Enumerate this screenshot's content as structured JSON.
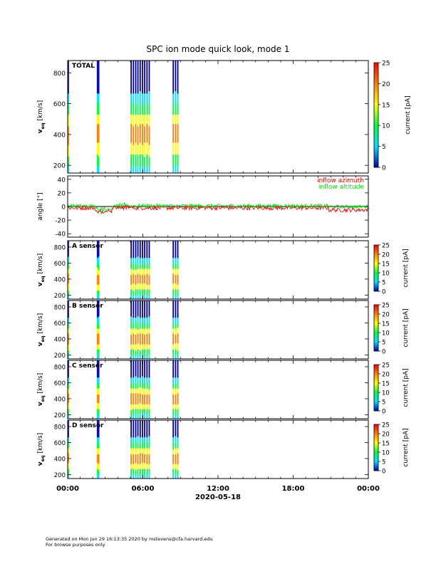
{
  "title": "SPC ion mode quick look, mode 1",
  "date_label": "2020-05-18",
  "footer": {
    "line1": "Generated on Mon Jun 29 16:13:35 2020 by mstevens@cfa.harvard.edu",
    "line2": "For browse purposes only."
  },
  "colors": {
    "axis": "#000000",
    "azimuth": "#ff0000",
    "altitude": "#00dd00",
    "colormap": [
      "#0000aa",
      "#00e0ff",
      "#00ff40",
      "#ffff00",
      "#ff8000",
      "#ff0000"
    ]
  },
  "chart_data": [
    {
      "type": "heatmap",
      "panel": "TOTAL",
      "label": "TOTAL",
      "ylabel_main": "v",
      "ylabel_sub": "eq",
      "ylabel_unit": " [km/s]",
      "ylim": [
        150,
        880
      ],
      "yticks": [
        200,
        400,
        600,
        800
      ],
      "colorbar_label": "current [pA]",
      "colorbar_range": [
        0,
        25
      ],
      "colorbar_ticks": [
        0,
        5,
        10,
        15,
        20,
        25
      ]
    },
    {
      "type": "line",
      "panel": "angle",
      "ylabel": "angle [°]",
      "ylim": [
        -45,
        45
      ],
      "yticks": [
        -40,
        -20,
        0,
        20,
        40
      ],
      "series": [
        {
          "name": "inflow azimuth",
          "color": "#ff0000",
          "mean": -2,
          "noise": 3
        },
        {
          "name": "inflow altitude",
          "color": "#00dd00",
          "mean": 1,
          "noise": 2.5
        }
      ]
    },
    {
      "type": "heatmap",
      "panel": "A",
      "label": "A sensor",
      "ylabel_main": "v",
      "ylabel_sub": "eq",
      "ylabel_unit": " [km/s]",
      "ylim": [
        150,
        880
      ],
      "yticks": [
        200,
        400,
        600,
        800
      ],
      "colorbar_label": "current [pA]",
      "colorbar_range": [
        0,
        25
      ],
      "colorbar_ticks": [
        0,
        5,
        10,
        15,
        20,
        25
      ]
    },
    {
      "type": "heatmap",
      "panel": "B",
      "label": "B sensor",
      "ylabel_main": "v",
      "ylabel_sub": "eq",
      "ylabel_unit": " [km/s]",
      "ylim": [
        150,
        880
      ],
      "yticks": [
        200,
        400,
        600,
        800
      ],
      "colorbar_label": "current [pA]",
      "colorbar_range": [
        0,
        25
      ],
      "colorbar_ticks": [
        0,
        5,
        10,
        15,
        20,
        25
      ]
    },
    {
      "type": "heatmap",
      "panel": "C",
      "label": "C sensor",
      "ylabel_main": "v",
      "ylabel_sub": "eq",
      "ylabel_unit": " [km/s]",
      "ylim": [
        150,
        880
      ],
      "yticks": [
        200,
        400,
        600,
        800
      ],
      "colorbar_label": "current [pA]",
      "colorbar_range": [
        0,
        25
      ],
      "colorbar_ticks": [
        0,
        5,
        10,
        15,
        20,
        25
      ]
    },
    {
      "type": "heatmap",
      "panel": "D",
      "label": "D sensor",
      "ylabel_main": "v",
      "ylabel_sub": "eq",
      "ylabel_unit": " [km/s]",
      "ylim": [
        150,
        880
      ],
      "yticks": [
        200,
        400,
        600,
        800
      ],
      "colorbar_label": "current [pA]",
      "colorbar_range": [
        0,
        25
      ],
      "colorbar_ticks": [
        0,
        5,
        10,
        15,
        20,
        25
      ]
    }
  ],
  "time_axis": {
    "xlim_hours": [
      0,
      24
    ],
    "ticks": [
      {
        "hour": 0,
        "label": "00:00"
      },
      {
        "hour": 6,
        "label": "06:00"
      },
      {
        "hour": 12,
        "label": "12:00"
      },
      {
        "hour": 18,
        "label": "18:00"
      },
      {
        "hour": 24,
        "label": "00:00"
      }
    ]
  },
  "measurement_times_hours": [
    0.05,
    2.38,
    2.48,
    5.07,
    5.25,
    5.43,
    5.61,
    5.79,
    5.97,
    6.15,
    6.33,
    6.51,
    8.43,
    8.61,
    8.79
  ]
}
